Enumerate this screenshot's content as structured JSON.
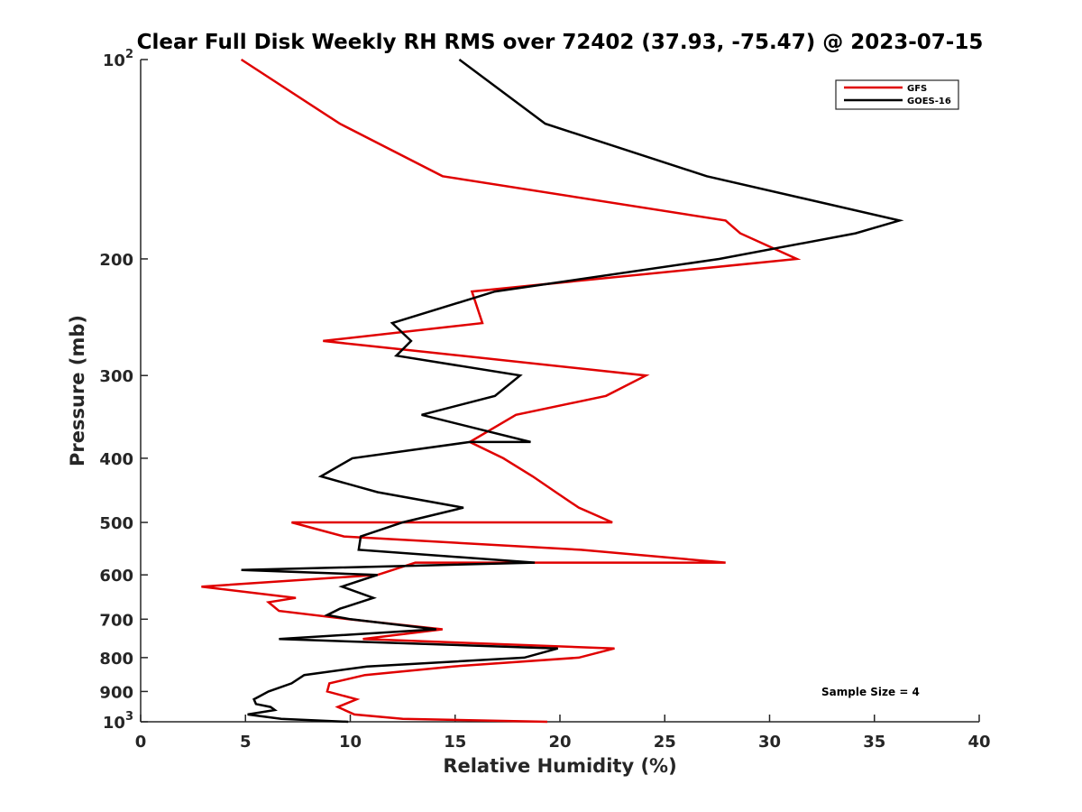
{
  "chart_data": {
    "type": "line",
    "title": "Clear Full Disk Weekly RH RMS over 72402 (37.93, -75.47) @ 2023-07-15",
    "xlabel": "Relative Humidity (%)",
    "ylabel": "Pressure (mb)",
    "xlim": [
      0,
      40
    ],
    "ylim": [
      1000,
      100
    ],
    "yscale": "log",
    "x_ticks": [
      0,
      5,
      10,
      15,
      20,
      25,
      30,
      35,
      40
    ],
    "x_tick_labels": [
      "0",
      "5",
      "10",
      "15",
      "20",
      "25",
      "30",
      "35",
      "40"
    ],
    "y_ticks": [
      100,
      200,
      300,
      400,
      500,
      600,
      700,
      800,
      900,
      1000
    ],
    "y_tick_labels": [
      {
        "base": "10",
        "exp": "2"
      },
      {
        "base": "200",
        "exp": ""
      },
      {
        "base": "300",
        "exp": ""
      },
      {
        "base": "400",
        "exp": ""
      },
      {
        "base": "500",
        "exp": ""
      },
      {
        "base": "600",
        "exp": ""
      },
      {
        "base": "700",
        "exp": ""
      },
      {
        "base": "800",
        "exp": ""
      },
      {
        "base": "900",
        "exp": ""
      },
      {
        "base": "10",
        "exp": "3"
      }
    ],
    "legend_position": "top-right",
    "annotation": "Sample Size = 4",
    "series": [
      {
        "name": "GFS",
        "color": "#e00000",
        "points": [
          [
            4.8,
            100
          ],
          [
            9.5,
            125
          ],
          [
            14.4,
            150
          ],
          [
            27.9,
            175
          ],
          [
            28.6,
            183
          ],
          [
            31.3,
            200
          ],
          [
            15.8,
            224
          ],
          [
            16.3,
            250
          ],
          [
            8.7,
            266
          ],
          [
            24.1,
            300
          ],
          [
            22.2,
            322
          ],
          [
            17.9,
            344
          ],
          [
            15.7,
            378
          ],
          [
            17.3,
            400
          ],
          [
            18.7,
            426
          ],
          [
            19.8,
            450
          ],
          [
            20.9,
            475
          ],
          [
            22.5,
            500
          ],
          [
            7.2,
            500
          ],
          [
            9.7,
            525
          ],
          [
            21.0,
            550
          ],
          [
            27.9,
            575
          ],
          [
            13.1,
            575
          ],
          [
            11.3,
            600
          ],
          [
            2.9,
            625
          ],
          [
            7.4,
            650
          ],
          [
            6.1,
            660
          ],
          [
            6.6,
            680
          ],
          [
            9.9,
            700
          ],
          [
            14.4,
            725
          ],
          [
            10.6,
            750
          ],
          [
            22.6,
            775
          ],
          [
            20.9,
            800
          ],
          [
            14.9,
            825
          ],
          [
            10.7,
            850
          ],
          [
            9.0,
            875
          ],
          [
            8.9,
            900
          ],
          [
            10.3,
            925
          ],
          [
            9.4,
            950
          ],
          [
            10.2,
            975
          ],
          [
            12.5,
            990
          ],
          [
            19.4,
            1000
          ]
        ]
      },
      {
        "name": "GOES-16",
        "color": "#000000",
        "points": [
          [
            15.2,
            100
          ],
          [
            19.3,
            125
          ],
          [
            27.0,
            150
          ],
          [
            36.2,
            175
          ],
          [
            34.1,
            183
          ],
          [
            27.6,
            200
          ],
          [
            16.9,
            224
          ],
          [
            12.0,
            250
          ],
          [
            12.9,
            266
          ],
          [
            12.2,
            280
          ],
          [
            18.1,
            300
          ],
          [
            16.9,
            322
          ],
          [
            13.4,
            344
          ],
          [
            18.6,
            378
          ],
          [
            15.7,
            378
          ],
          [
            10.1,
            400
          ],
          [
            8.6,
            426
          ],
          [
            11.3,
            450
          ],
          [
            15.4,
            475
          ],
          [
            12.5,
            500
          ],
          [
            10.5,
            525
          ],
          [
            10.4,
            550
          ],
          [
            18.8,
            575
          ],
          [
            4.8,
            590
          ],
          [
            11.3,
            600
          ],
          [
            9.6,
            625
          ],
          [
            11.1,
            650
          ],
          [
            9.5,
            675
          ],
          [
            8.9,
            690
          ],
          [
            10.0,
            700
          ],
          [
            14.1,
            725
          ],
          [
            6.6,
            750
          ],
          [
            19.9,
            775
          ],
          [
            18.3,
            800
          ],
          [
            10.8,
            825
          ],
          [
            7.8,
            850
          ],
          [
            7.2,
            875
          ],
          [
            6.1,
            900
          ],
          [
            5.4,
            925
          ],
          [
            5.5,
            940
          ],
          [
            6.2,
            950
          ],
          [
            6.4,
            960
          ],
          [
            5.1,
            975
          ],
          [
            6.7,
            990
          ],
          [
            9.9,
            1000
          ]
        ]
      }
    ]
  }
}
